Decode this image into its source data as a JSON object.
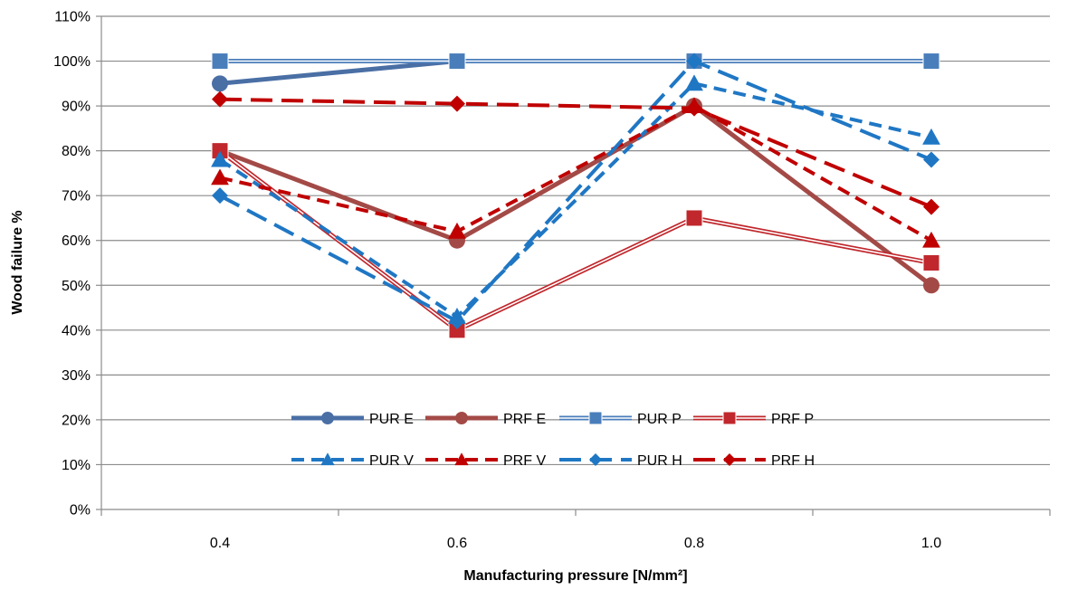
{
  "chart_data": {
    "type": "line",
    "title": "",
    "xlabel": "Manufacturing pressure [N/mm²]",
    "ylabel": "Wood failure %",
    "categories": [
      "0.4",
      "0.6",
      "0.8",
      "1.0"
    ],
    "ylim": [
      0,
      110
    ],
    "yticks": [
      0,
      10,
      20,
      30,
      40,
      50,
      60,
      70,
      80,
      90,
      100,
      110
    ],
    "ytick_suffix": "%",
    "grid": "horizontal",
    "legend_position": "inside-bottom-center",
    "series": [
      {
        "name": "PUR E",
        "values": [
          95,
          100,
          100,
          100
        ],
        "color": "#4a6fa5",
        "style": "solid",
        "marker": "circle"
      },
      {
        "name": "PRF E",
        "values": [
          80,
          60,
          90,
          50
        ],
        "color": "#a34a47",
        "style": "solid",
        "marker": "circle"
      },
      {
        "name": "PUR P",
        "values": [
          100,
          100,
          100,
          100
        ],
        "color": "#4a7ebb",
        "style": "double",
        "marker": "square"
      },
      {
        "name": "PRF P",
        "values": [
          80,
          40,
          65,
          55
        ],
        "color": "#c0282d",
        "style": "double",
        "marker": "square"
      },
      {
        "name": "PUR V",
        "values": [
          78,
          43,
          95,
          83
        ],
        "color": "#1f77c4",
        "style": "dashed",
        "marker": "triangle"
      },
      {
        "name": "PRF V",
        "values": [
          74,
          62,
          90,
          60
        ],
        "color": "#c00000",
        "style": "dashed",
        "marker": "triangle"
      },
      {
        "name": "PUR H",
        "values": [
          70,
          42,
          100,
          78
        ],
        "color": "#1f77c4",
        "style": "longdash",
        "marker": "diamond"
      },
      {
        "name": "PRF H",
        "values": [
          91.5,
          90.5,
          89.5,
          67.5
        ],
        "color": "#c00000",
        "style": "longdash",
        "marker": "diamond"
      }
    ]
  }
}
